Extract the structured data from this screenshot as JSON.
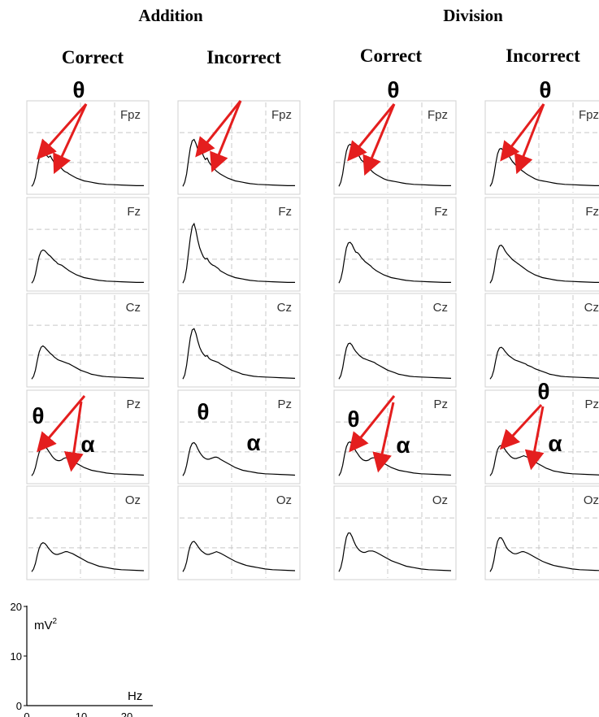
{
  "figure": {
    "groups": [
      {
        "title": "Addition",
        "conditions": [
          "Correct",
          "Incorrect"
        ]
      },
      {
        "title": "Division",
        "conditions": [
          "Correct",
          "Incorrect"
        ]
      }
    ],
    "channels": [
      "Fpz",
      "Fz",
      "Cz",
      "Pz",
      "Oz"
    ],
    "theta_symbol": "θ",
    "alpha_symbol": "α"
  },
  "scale": {
    "ylabel": "mV",
    "ylabel_sup": "2",
    "xlabel": "Hz",
    "y_ticks": [
      "20",
      "10",
      "0"
    ],
    "x_ticks": [
      "0",
      "10",
      "20"
    ]
  },
  "colors": {
    "curve": "#000000",
    "arrow": "#e41e1e",
    "grid": "#c8c8c8",
    "border": "#d0d0d0"
  },
  "chart_data": {
    "type": "line",
    "xlim": [
      0,
      30
    ],
    "ylim": [
      0,
      20
    ],
    "xlabel": "Hz",
    "ylabel": "mV²",
    "grid": true,
    "panel_grid": [
      "Addition-Correct",
      "Addition-Incorrect",
      "Division-Correct",
      "Division-Incorrect"
    ],
    "x": [
      0,
      0.5,
      1,
      1.5,
      2,
      2.5,
      3,
      3.5,
      4,
      4.5,
      5,
      5.5,
      6,
      6.5,
      7,
      7.5,
      8,
      8.5,
      9,
      9.5,
      10,
      11,
      12,
      13,
      14,
      15,
      16,
      17,
      18,
      19,
      20,
      22,
      24,
      26,
      28,
      30
    ],
    "series": [
      {
        "condition": "Addition-Correct",
        "channel": "Fpz",
        "values": [
          0.2,
          0.6,
          1.5,
          3.0,
          4.3,
          5.0,
          5.2,
          5.1,
          4.7,
          4.4,
          4.6,
          4.1,
          3.7,
          3.4,
          3.1,
          3.0,
          2.8,
          2.5,
          2.3,
          2.2,
          2.0,
          1.7,
          1.4,
          1.2,
          1.0,
          0.9,
          0.8,
          0.7,
          0.6,
          0.55,
          0.5,
          0.45,
          0.4,
          0.35,
          0.3,
          0.3
        ]
      },
      {
        "condition": "Addition-Correct",
        "channel": "Fz",
        "values": [
          0.2,
          0.6,
          1.5,
          2.9,
          4.1,
          4.8,
          5.0,
          4.9,
          4.6,
          4.3,
          4.1,
          3.8,
          3.5,
          3.3,
          3.0,
          2.9,
          2.8,
          2.6,
          2.4,
          2.2,
          2.0,
          1.7,
          1.4,
          1.2,
          1.0,
          0.9,
          0.8,
          0.7,
          0.6,
          0.55,
          0.5,
          0.45,
          0.4,
          0.35,
          0.3,
          0.3
        ]
      },
      {
        "condition": "Addition-Correct",
        "channel": "Cz",
        "values": [
          0.2,
          0.6,
          1.5,
          2.9,
          4.1,
          4.8,
          5.0,
          4.8,
          4.5,
          4.2,
          3.9,
          3.7,
          3.4,
          3.2,
          3.0,
          2.9,
          2.8,
          2.7,
          2.6,
          2.5,
          2.4,
          2.1,
          1.8,
          1.5,
          1.3,
          1.1,
          0.9,
          0.8,
          0.7,
          0.6,
          0.55,
          0.5,
          0.45,
          0.4,
          0.35,
          0.3
        ]
      },
      {
        "condition": "Addition-Correct",
        "channel": "Pz",
        "values": [
          0.2,
          0.6,
          1.4,
          2.6,
          3.6,
          4.3,
          4.6,
          4.5,
          4.2,
          3.8,
          3.4,
          3.0,
          2.7,
          2.5,
          2.4,
          2.4,
          2.5,
          2.7,
          2.8,
          2.8,
          2.7,
          2.4,
          2.0,
          1.7,
          1.4,
          1.2,
          1.0,
          0.9,
          0.8,
          0.7,
          0.6,
          0.5,
          0.45,
          0.4,
          0.35,
          0.3
        ]
      },
      {
        "condition": "Addition-Correct",
        "channel": "Oz",
        "values": [
          0.2,
          0.6,
          1.4,
          2.6,
          3.6,
          4.2,
          4.4,
          4.3,
          4.0,
          3.6,
          3.3,
          3.0,
          2.8,
          2.7,
          2.7,
          2.8,
          2.9,
          3.0,
          3.1,
          3.1,
          3.0,
          2.8,
          2.5,
          2.2,
          1.9,
          1.6,
          1.4,
          1.2,
          1.0,
          0.9,
          0.8,
          0.6,
          0.5,
          0.45,
          0.4,
          0.35
        ]
      },
      {
        "condition": "Addition-Incorrect",
        "channel": "Fpz",
        "values": [
          0.2,
          0.8,
          2.0,
          4.0,
          5.8,
          6.8,
          7.0,
          6.4,
          5.5,
          4.9,
          5.4,
          4.6,
          4.1,
          4.3,
          3.7,
          3.3,
          3.0,
          2.7,
          2.4,
          2.2,
          2.0,
          1.7,
          1.4,
          1.2,
          1.0,
          0.9,
          0.8,
          0.7,
          0.6,
          0.55,
          0.5,
          0.45,
          0.4,
          0.35,
          0.3,
          0.3
        ]
      },
      {
        "condition": "Addition-Incorrect",
        "channel": "Fz",
        "values": [
          0.2,
          0.8,
          2.3,
          4.6,
          6.8,
          8.4,
          8.8,
          7.8,
          6.4,
          5.3,
          4.6,
          4.0,
          3.7,
          3.8,
          3.3,
          3.0,
          2.8,
          2.7,
          2.5,
          2.3,
          2.0,
          1.7,
          1.4,
          1.2,
          1.0,
          0.9,
          0.8,
          0.7,
          0.6,
          0.55,
          0.5,
          0.45,
          0.4,
          0.35,
          0.3,
          0.3
        ]
      },
      {
        "condition": "Addition-Incorrect",
        "channel": "Cz",
        "values": [
          0.2,
          0.8,
          2.2,
          4.3,
          6.2,
          7.3,
          7.5,
          6.8,
          5.7,
          4.8,
          4.2,
          3.8,
          3.5,
          3.6,
          3.2,
          3.0,
          2.9,
          2.8,
          2.7,
          2.6,
          2.4,
          2.1,
          1.8,
          1.5,
          1.3,
          1.1,
          0.9,
          0.8,
          0.7,
          0.6,
          0.55,
          0.5,
          0.45,
          0.4,
          0.35,
          0.3
        ]
      },
      {
        "condition": "Addition-Incorrect",
        "channel": "Pz",
        "values": [
          0.2,
          0.7,
          1.7,
          3.1,
          4.3,
          4.9,
          5.0,
          4.7,
          4.1,
          3.6,
          3.2,
          2.9,
          2.7,
          2.6,
          2.6,
          2.7,
          2.8,
          2.9,
          2.9,
          2.8,
          2.6,
          2.3,
          2.0,
          1.7,
          1.4,
          1.2,
          1.0,
          0.9,
          0.8,
          0.7,
          0.6,
          0.5,
          0.45,
          0.4,
          0.35,
          0.3
        ]
      },
      {
        "condition": "Addition-Incorrect",
        "channel": "Oz",
        "values": [
          0.2,
          0.7,
          1.6,
          3.0,
          4.0,
          4.5,
          4.6,
          4.3,
          3.9,
          3.5,
          3.2,
          3.0,
          2.8,
          2.7,
          2.7,
          2.8,
          2.9,
          3.0,
          3.1,
          3.0,
          2.9,
          2.6,
          2.3,
          2.0,
          1.7,
          1.5,
          1.3,
          1.1,
          1.0,
          0.9,
          0.8,
          0.6,
          0.5,
          0.45,
          0.4,
          0.35
        ]
      },
      {
        "condition": "Division-Correct",
        "channel": "Fpz",
        "values": [
          0.2,
          0.8,
          2.0,
          3.8,
          5.3,
          6.1,
          6.3,
          6.0,
          5.3,
          4.8,
          5.0,
          4.5,
          4.0,
          3.8,
          3.4,
          3.1,
          2.9,
          2.6,
          2.3,
          2.1,
          1.9,
          1.6,
          1.3,
          1.1,
          1.0,
          0.9,
          0.8,
          0.7,
          0.6,
          0.55,
          0.5,
          0.45,
          0.4,
          0.35,
          0.3,
          0.3
        ]
      },
      {
        "condition": "Division-Correct",
        "channel": "Fz",
        "values": [
          0.2,
          0.8,
          2.0,
          3.8,
          5.3,
          6.0,
          6.1,
          5.8,
          5.2,
          4.7,
          4.6,
          4.3,
          3.9,
          3.6,
          3.3,
          3.1,
          2.9,
          2.7,
          2.4,
          2.2,
          2.0,
          1.7,
          1.4,
          1.2,
          1.0,
          0.9,
          0.8,
          0.7,
          0.6,
          0.55,
          0.5,
          0.45,
          0.4,
          0.35,
          0.3,
          0.3
        ]
      },
      {
        "condition": "Division-Correct",
        "channel": "Cz",
        "values": [
          0.2,
          0.7,
          1.8,
          3.4,
          4.7,
          5.3,
          5.4,
          5.1,
          4.6,
          4.2,
          3.9,
          3.6,
          3.4,
          3.2,
          3.1,
          3.0,
          2.9,
          2.8,
          2.7,
          2.6,
          2.4,
          2.1,
          1.8,
          1.5,
          1.3,
          1.1,
          0.9,
          0.8,
          0.7,
          0.6,
          0.55,
          0.5,
          0.45,
          0.4,
          0.35,
          0.3
        ]
      },
      {
        "condition": "Division-Correct",
        "channel": "Pz",
        "values": [
          0.2,
          0.7,
          1.7,
          3.2,
          4.4,
          5.0,
          5.1,
          4.8,
          4.3,
          3.8,
          3.4,
          3.0,
          2.7,
          2.5,
          2.4,
          2.4,
          2.5,
          2.7,
          2.8,
          2.8,
          2.7,
          2.4,
          2.0,
          1.7,
          1.4,
          1.2,
          1.0,
          0.9,
          0.8,
          0.7,
          0.6,
          0.5,
          0.45,
          0.4,
          0.35,
          0.3
        ]
      },
      {
        "condition": "Division-Correct",
        "channel": "Oz",
        "values": [
          0.2,
          0.8,
          2.0,
          3.8,
          5.2,
          5.8,
          5.8,
          5.3,
          4.6,
          4.0,
          3.6,
          3.3,
          3.1,
          3.0,
          3.0,
          3.1,
          3.2,
          3.2,
          3.2,
          3.1,
          3.0,
          2.7,
          2.4,
          2.1,
          1.8,
          1.6,
          1.4,
          1.2,
          1.0,
          0.9,
          0.8,
          0.6,
          0.5,
          0.45,
          0.4,
          0.35
        ]
      },
      {
        "condition": "Division-Incorrect",
        "channel": "Fpz",
        "values": [
          0.2,
          0.7,
          1.8,
          3.5,
          4.9,
          5.6,
          5.7,
          5.4,
          4.9,
          4.5,
          4.7,
          4.2,
          3.8,
          3.5,
          3.2,
          3.0,
          2.8,
          2.5,
          2.3,
          2.1,
          1.9,
          1.6,
          1.3,
          1.1,
          1.0,
          0.9,
          0.8,
          0.7,
          0.6,
          0.55,
          0.5,
          0.45,
          0.4,
          0.35,
          0.3,
          0.3
        ]
      },
      {
        "condition": "Division-Incorrect",
        "channel": "Fz",
        "values": [
          0.2,
          0.7,
          1.8,
          3.5,
          4.9,
          5.6,
          5.7,
          5.4,
          4.9,
          4.5,
          4.2,
          3.9,
          3.6,
          3.4,
          3.2,
          3.0,
          2.8,
          2.6,
          2.4,
          2.2,
          2.0,
          1.7,
          1.4,
          1.2,
          1.0,
          0.9,
          0.8,
          0.7,
          0.6,
          0.55,
          0.5,
          0.45,
          0.4,
          0.35,
          0.3,
          0.3
        ]
      },
      {
        "condition": "Division-Incorrect",
        "channel": "Cz",
        "values": [
          0.2,
          0.6,
          1.5,
          2.9,
          4.1,
          4.7,
          4.8,
          4.6,
          4.2,
          3.9,
          3.6,
          3.4,
          3.2,
          3.0,
          2.9,
          2.8,
          2.7,
          2.6,
          2.5,
          2.4,
          2.2,
          2.0,
          1.7,
          1.5,
          1.3,
          1.1,
          0.9,
          0.8,
          0.7,
          0.6,
          0.55,
          0.5,
          0.45,
          0.4,
          0.35,
          0.3
        ]
      },
      {
        "condition": "Division-Incorrect",
        "channel": "Pz",
        "values": [
          0.2,
          0.6,
          1.5,
          2.9,
          4.0,
          4.5,
          4.6,
          4.4,
          4.0,
          3.6,
          3.3,
          3.0,
          2.8,
          2.7,
          2.7,
          2.8,
          2.9,
          3.0,
          3.1,
          3.0,
          2.9,
          2.6,
          2.2,
          1.9,
          1.6,
          1.3,
          1.1,
          0.9,
          0.8,
          0.7,
          0.6,
          0.5,
          0.45,
          0.4,
          0.35,
          0.3
        ]
      },
      {
        "condition": "Division-Incorrect",
        "channel": "Oz",
        "values": [
          0.2,
          0.7,
          1.8,
          3.4,
          4.6,
          5.1,
          5.1,
          4.7,
          4.1,
          3.6,
          3.3,
          3.1,
          2.9,
          2.8,
          2.8,
          2.9,
          3.0,
          3.1,
          3.1,
          3.0,
          2.9,
          2.6,
          2.3,
          2.0,
          1.7,
          1.5,
          1.3,
          1.1,
          1.0,
          0.9,
          0.8,
          0.6,
          0.5,
          0.45,
          0.4,
          0.35
        ]
      }
    ]
  }
}
